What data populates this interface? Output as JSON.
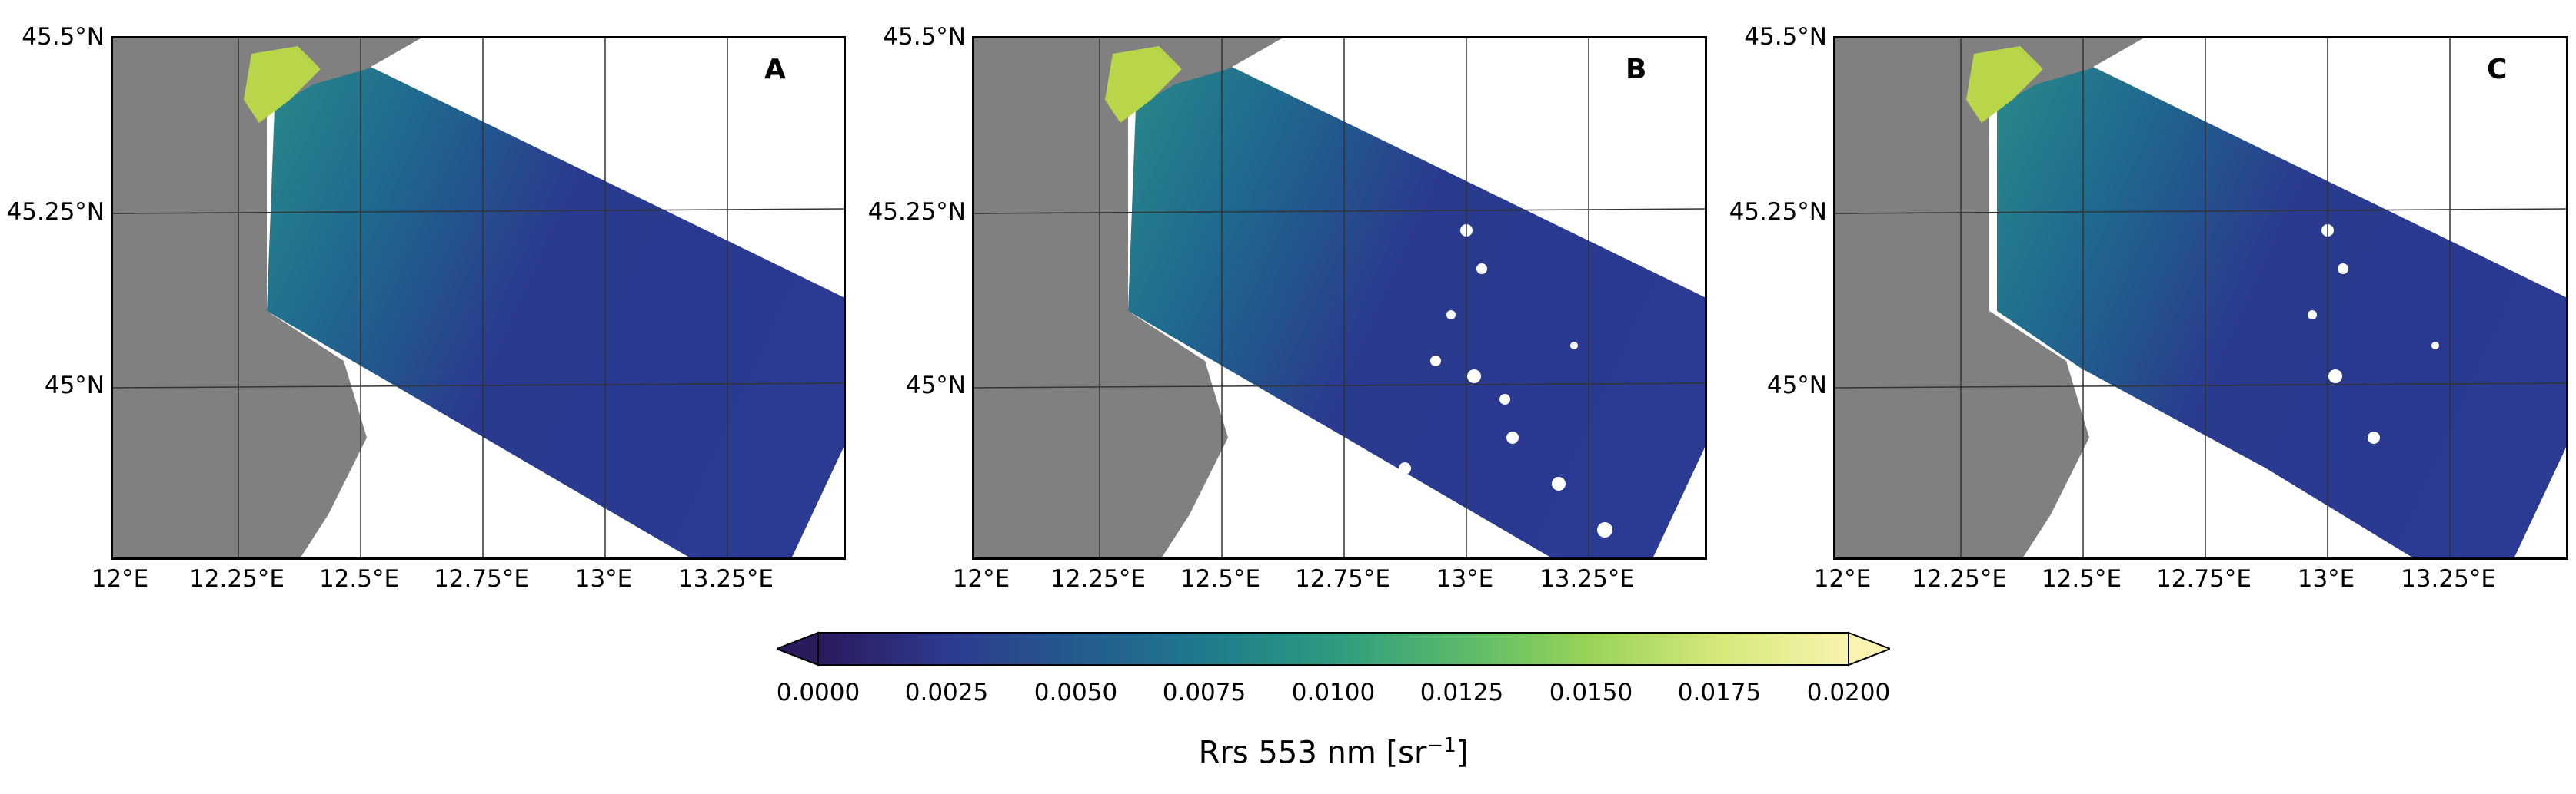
{
  "panels": [
    {
      "letter": "A",
      "variant": "full"
    },
    {
      "letter": "B",
      "variant": "scattered-gaps"
    },
    {
      "letter": "C",
      "variant": "heavy-gaps"
    }
  ],
  "axes": {
    "lat_ticks": [
      "45.5°N",
      "45.25°N",
      "45°N"
    ],
    "lon_ticks": [
      "12°E",
      "12.25°E",
      "12.5°E",
      "12.75°E",
      "13°E",
      "13.25°E"
    ]
  },
  "colorbar": {
    "ticks": [
      "0.0000",
      "0.0025",
      "0.0050",
      "0.0075",
      "0.0100",
      "0.0125",
      "0.0150",
      "0.0175",
      "0.0200"
    ],
    "label_main": "Rrs 553 nm [sr",
    "label_sup": "−1",
    "label_end": "]",
    "colormap": "viridis-like",
    "extend": "both",
    "colors": [
      "#2b1a5c",
      "#2c3a8f",
      "#255a8e",
      "#1f7a8c",
      "#2e9b80",
      "#5ab96a",
      "#9ad457",
      "#d6e87a",
      "#f8f3ae"
    ]
  },
  "colors": {
    "land": "#808080",
    "water_deep": "#2a2f8c",
    "water_mid": "#1f5e8e",
    "water_coastal": "#2a8a8a",
    "lagoon": "#c8d94a"
  }
}
